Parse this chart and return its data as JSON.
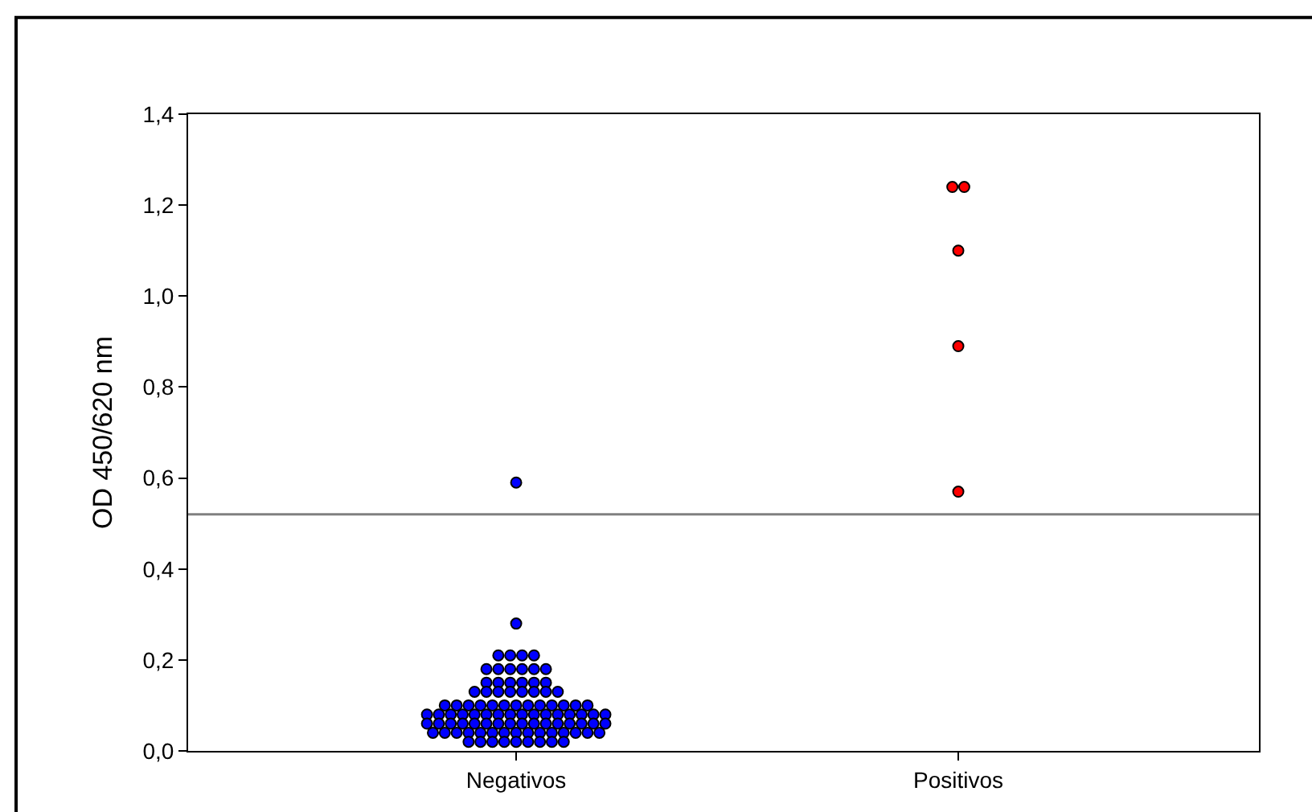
{
  "chart_data": {
    "type": "scatter",
    "ylabel": "OD 450/620 nm",
    "categories": [
      "Negativos",
      "Positivos"
    ],
    "series": [
      {
        "color": "#0000ff",
        "x": [
          "Negativos",
          "Negativos",
          "Negativos",
          "Negativos",
          "Negativos",
          "Negativos",
          "Negativos",
          "Negativos",
          "Negativos",
          "Negativos",
          "Negativos",
          "Negativos",
          "Negativos",
          "Negativos",
          "Negativos",
          "Negativos",
          "Negativos",
          "Negativos",
          "Negativos",
          "Negativos",
          "Negativos",
          "Negativos",
          "Negativos",
          "Negativos",
          "Negativos",
          "Negativos",
          "Negativos",
          "Negativos",
          "Negativos",
          "Negativos",
          "Negativos",
          "Negativos",
          "Negativos",
          "Negativos",
          "Negativos",
          "Negativos",
          "Negativos",
          "Negativos",
          "Negativos",
          "Negativos",
          "Negativos",
          "Negativos",
          "Negativos",
          "Negativos",
          "Negativos",
          "Negativos",
          "Negativos",
          "Negativos",
          "Negativos",
          "Negativos",
          "Negativos",
          "Negativos",
          "Negativos",
          "Negativos",
          "Negativos",
          "Negativos",
          "Negativos",
          "Negativos",
          "Negativos",
          "Negativos",
          "Negativos",
          "Negativos",
          "Negativos",
          "Negativos",
          "Negativos",
          "Negativos",
          "Negativos",
          "Negativos",
          "Negativos",
          "Negativos",
          "Negativos",
          "Negativos",
          "Negativos",
          "Negativos",
          "Negativos",
          "Negativos",
          "Negativos",
          "Negativos",
          "Negativos",
          "Negativos",
          "Negativos",
          "Negativos",
          "Negativos",
          "Negativos",
          "Negativos",
          "Negativos",
          "Negativos",
          "Negativos",
          "Negativos",
          "Negativos",
          "Negativos",
          "Negativos",
          "Negativos",
          "Negativos",
          "Negativos"
        ],
        "values": [
          0.59,
          0.28,
          0.21,
          0.21,
          0.21,
          0.21,
          0.18,
          0.18,
          0.18,
          0.18,
          0.18,
          0.18,
          0.15,
          0.15,
          0.15,
          0.15,
          0.15,
          0.15,
          0.13,
          0.13,
          0.13,
          0.13,
          0.13,
          0.13,
          0.13,
          0.13,
          0.1,
          0.1,
          0.1,
          0.1,
          0.1,
          0.1,
          0.1,
          0.1,
          0.1,
          0.1,
          0.1,
          0.1,
          0.1,
          0.08,
          0.08,
          0.08,
          0.08,
          0.08,
          0.08,
          0.08,
          0.08,
          0.08,
          0.08,
          0.08,
          0.08,
          0.08,
          0.08,
          0.08,
          0.08,
          0.06,
          0.06,
          0.06,
          0.06,
          0.06,
          0.06,
          0.06,
          0.06,
          0.06,
          0.06,
          0.06,
          0.06,
          0.06,
          0.06,
          0.06,
          0.06,
          0.04,
          0.04,
          0.04,
          0.04,
          0.04,
          0.04,
          0.04,
          0.04,
          0.04,
          0.04,
          0.04,
          0.04,
          0.04,
          0.04,
          0.04,
          0.02,
          0.02,
          0.02,
          0.02,
          0.02,
          0.02,
          0.02,
          0.02,
          0.02
        ]
      },
      {
        "color": "#ff0000",
        "x": [
          "Positivos",
          "Positivos",
          "Positivos",
          "Positivos",
          "Positivos"
        ],
        "values": [
          1.24,
          1.24,
          1.1,
          0.89,
          0.57
        ]
      }
    ],
    "ylim": [
      0,
      1.4
    ],
    "yticks": [
      {
        "value": 0,
        "label": "0,0"
      },
      {
        "value": 0.2,
        "label": "0,2"
      },
      {
        "value": 0.4,
        "label": "0,4"
      },
      {
        "value": 0.6,
        "label": "0,6"
      },
      {
        "value": 0.8,
        "label": "0,8"
      },
      {
        "value": 1.0,
        "label": "1,0"
      },
      {
        "value": 1.2,
        "label": "1,2"
      },
      {
        "value": 1.4,
        "label": "1,4"
      }
    ],
    "ref_lines": [
      {
        "axis": "y",
        "value": 0.52,
        "color": "#808080"
      }
    ],
    "marker": "circle",
    "grid": false
  }
}
